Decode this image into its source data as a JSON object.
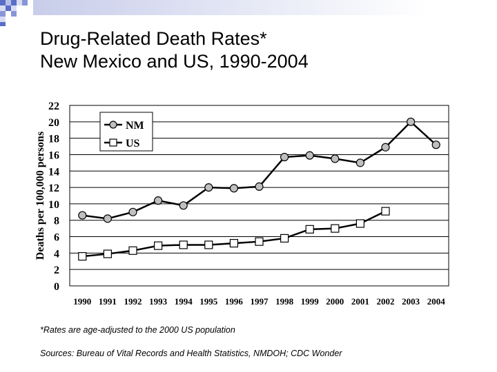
{
  "slide": {
    "title_line1": "Drug-Related Death Rates*",
    "title_line2": "New Mexico and US, 1990-2004",
    "footnote": "*Rates are age-adjusted to the 2000 US population",
    "sources": "Sources: Bureau of Vital Records and Health Statistics, NMDOH; CDC Wonder"
  },
  "colors": {
    "nm_marker": "#bfbfbf",
    "us_marker": "#ffffff",
    "line": "#000000",
    "grid": "#000000"
  },
  "chart_data": {
    "type": "line",
    "title": "Drug-Related Death Rates* New Mexico and US, 1990-2004",
    "xlabel": "",
    "ylabel": "Deaths per 100,000 persons",
    "ylim": [
      0,
      22
    ],
    "yticks": [
      0,
      2,
      4,
      6,
      8,
      10,
      12,
      14,
      16,
      18,
      20,
      22
    ],
    "grid": "horizontal",
    "legend": "top-left",
    "categories": [
      "1990",
      "1991",
      "1992",
      "1993",
      "1994",
      "1995",
      "1996",
      "1997",
      "1998",
      "1999",
      "2000",
      "2001",
      "2002",
      "2003",
      "2004"
    ],
    "series": [
      {
        "name": "NM",
        "marker": "circle",
        "values": [
          8.6,
          8.2,
          9.0,
          10.4,
          9.8,
          12.0,
          11.9,
          12.1,
          15.7,
          15.9,
          15.5,
          15.0,
          16.9,
          20.0,
          17.2
        ]
      },
      {
        "name": "US",
        "marker": "square",
        "values": [
          3.6,
          3.9,
          4.3,
          4.9,
          5.0,
          5.0,
          5.2,
          5.4,
          5.8,
          6.9,
          7.0,
          7.6,
          9.1,
          null,
          null
        ]
      }
    ]
  }
}
